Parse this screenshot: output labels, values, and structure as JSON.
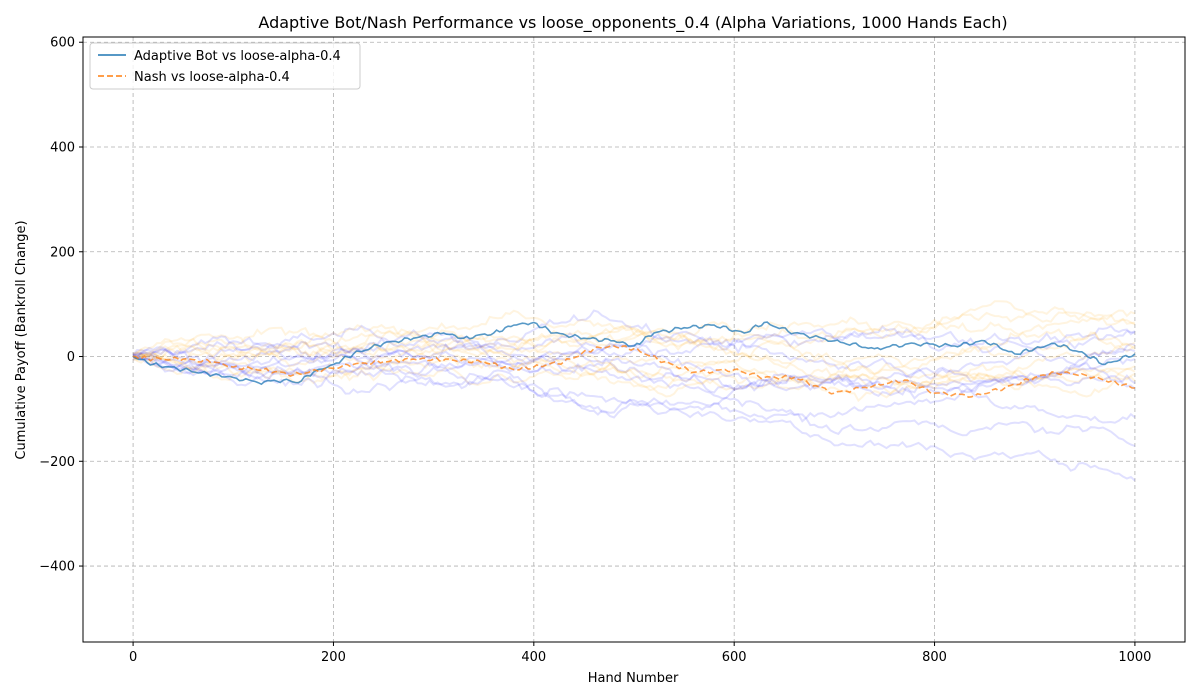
{
  "chart_data": {
    "type": "line",
    "title": "Adaptive Bot/Nash Performance vs  loose_opponents_0.4 (Alpha Variations, 1000 Hands Each)",
    "xlabel": "Hand Number",
    "ylabel": "Cumulative Payoff (Bankroll Change)",
    "xlim": [
      -50,
      1050
    ],
    "ylim": [
      -545,
      610
    ],
    "xticks": [
      0,
      200,
      400,
      600,
      800,
      1000
    ],
    "yticks": [
      -400,
      -200,
      0,
      200,
      400,
      600
    ],
    "xtick_labels": [
      "0",
      "200",
      "400",
      "600",
      "800",
      "1000"
    ],
    "ytick_labels": [
      "−400",
      "−200",
      "0",
      "200",
      "400",
      "600"
    ],
    "grid": true,
    "legend_position": "top-left",
    "series": [
      {
        "name": "Adaptive Bot vs loose-alpha-0.4",
        "color": "#1f77b4",
        "style": "solid",
        "x": [
          0,
          20,
          50,
          80,
          100,
          125,
          150,
          165,
          180,
          200,
          220,
          250,
          280,
          310,
          330,
          360,
          380,
          400,
          420,
          450,
          480,
          500,
          520,
          550,
          580,
          610,
          630,
          660,
          700,
          740,
          780,
          820,
          850,
          880,
          900,
          920,
          950,
          970,
          1000
        ],
        "values": [
          0,
          -15,
          -25,
          -35,
          -40,
          -50,
          -45,
          -50,
          -30,
          -15,
          5,
          25,
          35,
          45,
          35,
          45,
          60,
          65,
          45,
          35,
          30,
          20,
          45,
          55,
          60,
          45,
          65,
          45,
          30,
          15,
          25,
          20,
          30,
          5,
          15,
          25,
          5,
          -15,
          5
        ]
      },
      {
        "name": "Nash vs loose-alpha-0.4",
        "color": "#ff7f0e",
        "style": "dashed",
        "x": [
          0,
          20,
          50,
          80,
          100,
          130,
          160,
          190,
          220,
          250,
          280,
          300,
          350,
          380,
          400,
          430,
          460,
          480,
          500,
          530,
          560,
          600,
          630,
          660,
          700,
          740,
          770,
          800,
          840,
          870,
          900,
          920,
          950,
          1000
        ],
        "values": [
          0,
          -5,
          -5,
          -10,
          -20,
          -25,
          -35,
          -25,
          -15,
          -10,
          -5,
          -5,
          -10,
          -25,
          -20,
          -10,
          15,
          20,
          15,
          -10,
          -30,
          -25,
          -40,
          -40,
          -70,
          -55,
          -45,
          -70,
          -75,
          -60,
          -40,
          -30,
          -35,
          -60
        ]
      }
    ],
    "background_traces": {
      "colors": [
        "#0000ff",
        "#ffa500"
      ],
      "opacity": 0.12
    }
  }
}
